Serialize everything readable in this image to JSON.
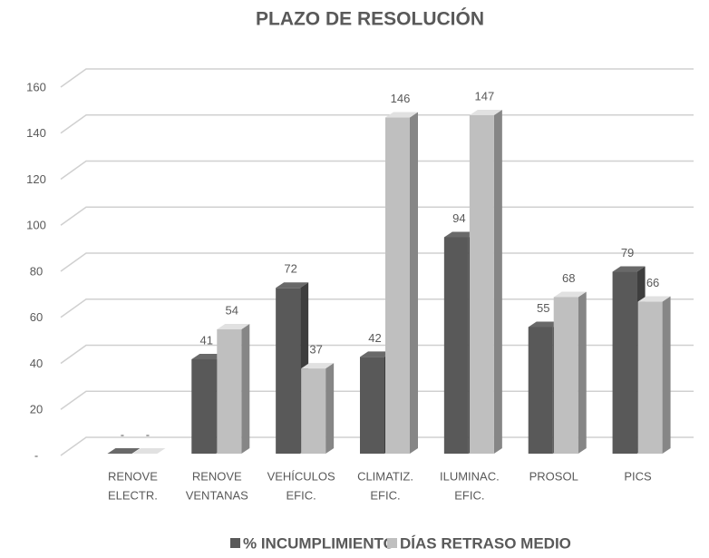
{
  "chart_data": {
    "type": "bar3d",
    "title": "PLAZO DE RESOLUCIÓN",
    "categories": [
      [
        "RENOVE",
        "ELECTR."
      ],
      [
        "RENOVE",
        "VENTANAS"
      ],
      [
        "VEHÍCULOS",
        "EFIC."
      ],
      [
        "CLIMATIZ.",
        "EFIC."
      ],
      [
        "ILUMINAC.",
        "EFIC."
      ],
      [
        "PROSOL"
      ],
      [
        "PICS"
      ]
    ],
    "series": [
      {
        "name": "% INCUMPLIMIENTO",
        "color": "#595959",
        "values": [
          0,
          41,
          72,
          42,
          94,
          55,
          79
        ],
        "value_labels": [
          "-",
          "41",
          "72",
          "42",
          "94",
          "55",
          "79"
        ]
      },
      {
        "name": "DÍAS RETRASO MEDIO",
        "color": "#bfbfbf",
        "values": [
          0,
          54,
          37,
          146,
          147,
          68,
          66
        ],
        "value_labels": [
          "-",
          "54",
          "37",
          "146",
          "147",
          "68",
          "66"
        ]
      }
    ],
    "ylim": [
      0,
      160
    ],
    "yticks": [
      {
        "value": 0,
        "label": "-"
      },
      20,
      40,
      60,
      80,
      100,
      120,
      140,
      160
    ],
    "grid": true,
    "legend": "bottom"
  }
}
